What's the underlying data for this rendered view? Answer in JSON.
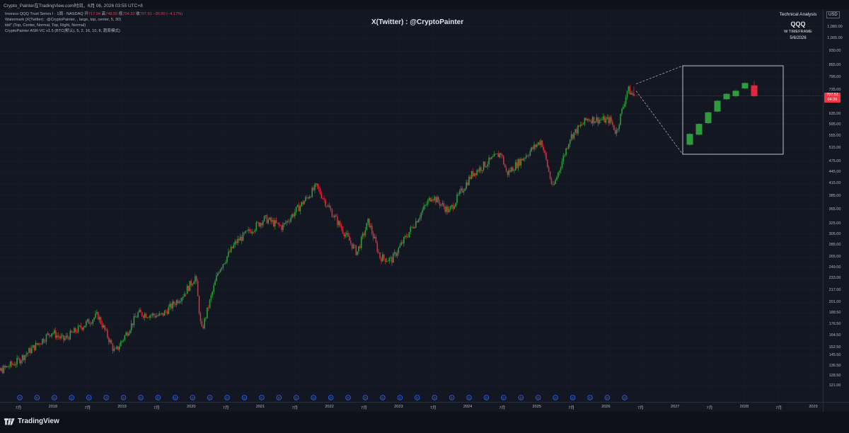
{
  "top_bar": {
    "text": "Crypto_Painter在TradingView.com时间，6月 06, 2026 03:55 UTC+8"
  },
  "legend": {
    "symbol": "Invesco QQQ Trust Series I · 1周 · NASDAQ",
    "o_label": "开",
    "o_value": "717.04",
    "h_label": "高",
    "h_value": "748.55",
    "l_label": "低",
    "l_value": "704.32",
    "c_label": "收",
    "c_value": "707.51",
    "change": "−30.80 (−4.17%)",
    "line2": "Watermark (X(Twitter) : @CryptoPainter, , large, top, center, 5, 30)",
    "line3": "tdd\" (Top, Center, Normal, Top, Right, Normal)",
    "line4": "CryptoPainter ASR-VC v1.5 (BTC(默认), 5, 2, 16, 10, 8, 蔬菜模式)"
  },
  "watermark": {
    "text": "X(Twitter) : @CryptoPainter"
  },
  "analysis_box": {
    "title": "Technical Analysis",
    "symbol": "QQQ",
    "timeframe": "W TIMEFRAME",
    "date": "5/6/2026"
  },
  "currency": "USD",
  "last_price": {
    "value": "707.51",
    "countdown": "04:26"
  },
  "colors": {
    "background": "#131722",
    "up": "#2e9c3a",
    "down": "#e0283a",
    "grid": "#1c2030",
    "zoom_box": "#d1d4dc",
    "event_marker": "#2962ff"
  },
  "chart_data": {
    "type": "candlestick",
    "symbol": "QQQ",
    "timeframe": "1W",
    "y_scale": "log",
    "ylim": [
      112,
      1160
    ],
    "y_ticks": [
      "1,080.00",
      "1,005.00",
      "930.00",
      "855.00",
      "795.00",
      "735.00",
      "685.00",
      "635.00",
      "595.00",
      "555.00",
      "515.00",
      "475.00",
      "445.00",
      "415.00",
      "385.00",
      "355.00",
      "325.00",
      "305.00",
      "285.00",
      "265.00",
      "249.00",
      "233.00",
      "217.00",
      "201.00",
      "188.50",
      "176.50",
      "164.50",
      "152.50",
      "145.50",
      "136.50",
      "128.50",
      "121.00"
    ],
    "x_ticks": [
      "7月",
      "2018",
      "7月",
      "2019",
      "7月",
      "2020",
      "7月",
      "2021",
      "7月",
      "2022",
      "7月",
      "2023",
      "7月",
      "2024",
      "7月",
      "2025",
      "7月",
      "2026",
      "7月",
      "2027",
      "7月",
      "2028",
      "7月",
      "2029"
    ],
    "x_range": [
      "2017-01",
      "2029-06"
    ],
    "price_path": [
      [
        "2017-01",
        125
      ],
      [
        "2017-07",
        140
      ],
      [
        "2018-01",
        168
      ],
      [
        "2018-03",
        160
      ],
      [
        "2018-09",
        186
      ],
      [
        "2018-12",
        148
      ],
      [
        "2019-04",
        188
      ],
      [
        "2019-08",
        185
      ],
      [
        "2019-12",
        212
      ],
      [
        "2020-02",
        236
      ],
      [
        "2020-03",
        168
      ],
      [
        "2020-06",
        245
      ],
      [
        "2020-09",
        290
      ],
      [
        "2021-02",
        335
      ],
      [
        "2021-05",
        318
      ],
      [
        "2021-11",
        408
      ],
      [
        "2022-01",
        360
      ],
      [
        "2022-06",
        272
      ],
      [
        "2022-08",
        330
      ],
      [
        "2022-10",
        265
      ],
      [
        "2022-12",
        260
      ],
      [
        "2023-07",
        385
      ],
      [
        "2023-10",
        350
      ],
      [
        "2024-02",
        440
      ],
      [
        "2024-07",
        500
      ],
      [
        "2024-08",
        440
      ],
      [
        "2025-02",
        540
      ],
      [
        "2025-04",
        402
      ],
      [
        "2025-07",
        550
      ],
      [
        "2025-10",
        615
      ],
      [
        "2026-02",
        610
      ],
      [
        "2026-03",
        565
      ],
      [
        "2026-05",
        738
      ],
      [
        "2026-06",
        707.51
      ]
    ],
    "last_candle": {
      "open": 717.04,
      "high": 748.55,
      "low": 704.32,
      "close": 707.51,
      "change": -30.8,
      "change_pct": -4.17
    },
    "zoom_inset": {
      "candles": [
        {
          "dir": "up"
        },
        {
          "dir": "up"
        },
        {
          "dir": "up"
        },
        {
          "dir": "up"
        },
        {
          "dir": "up"
        },
        {
          "dir": "up"
        },
        {
          "dir": "up"
        },
        {
          "dir": "down"
        }
      ]
    },
    "event_markers_label": "D"
  }
}
